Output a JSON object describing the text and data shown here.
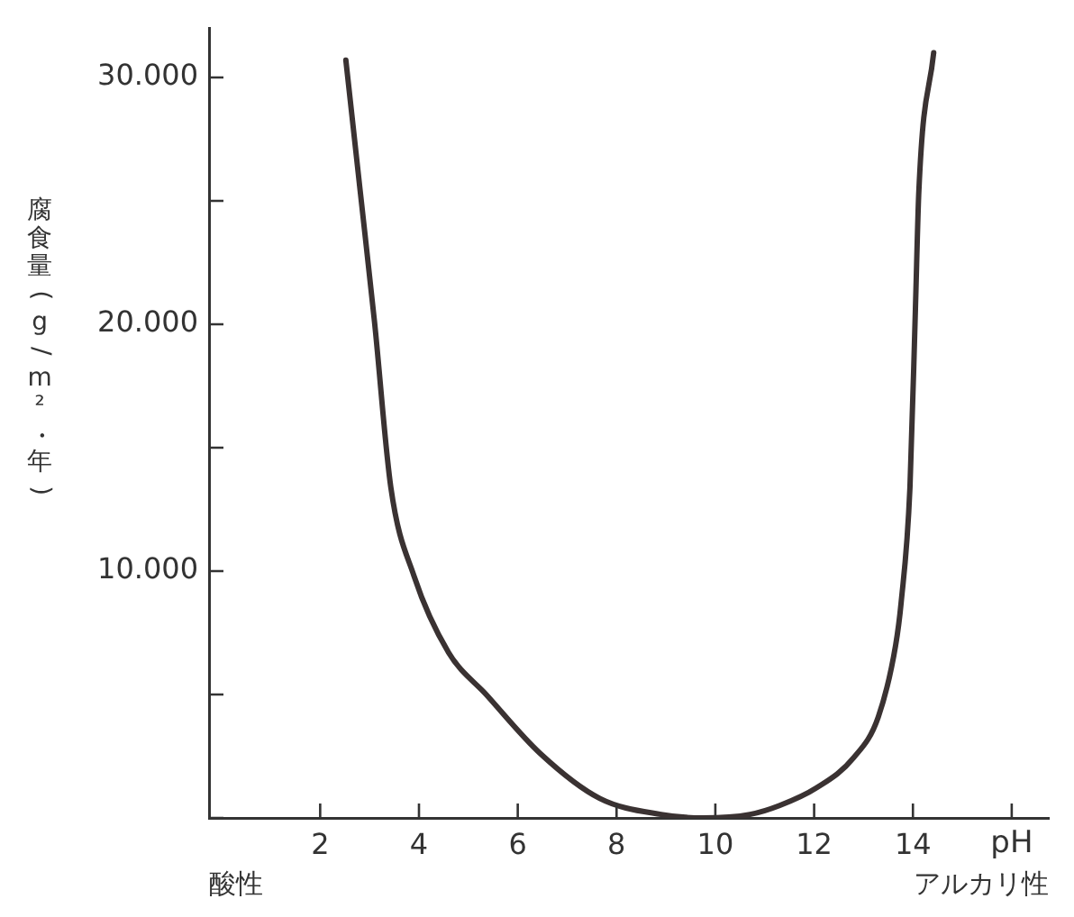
{
  "chart_data": {
    "type": "line",
    "xlabel": "pH",
    "ylabel": "腐食量(g/m²・年)",
    "annotations": [
      "酸性",
      "アルカリ性"
    ],
    "series": [
      {
        "color": "#3a3232",
        "x": [
          2.52,
          2.81,
          3.1,
          3.43,
          3.9,
          4.6,
          5.36,
          6.46,
          7.66,
          8.9,
          9.75,
          10.7,
          11.3,
          12.05,
          12.8,
          13.3,
          13.65,
          13.76,
          13.94,
          14.05,
          14.12,
          14.42
        ],
        "values": [
          30700,
          25400,
          20100,
          13400,
          9800,
          6700,
          5000,
          2600,
          790,
          140,
          0,
          140,
          500,
          1220,
          2440,
          4100,
          7000,
          8700,
          13400,
          20600,
          25400,
          31000
        ]
      }
    ],
    "xlim": [
      -0.25,
      16.75
    ],
    "xticks": [
      2,
      4,
      6,
      8,
      10,
      12,
      14,
      {
        "value": 16,
        "label": null
      }
    ],
    "ylim": [
      0,
      32000
    ],
    "yticks": [
      {
        "value": 0,
        "label": null
      },
      {
        "value": 5000,
        "label": null
      },
      {
        "value": 10000,
        "label": "10.000"
      },
      {
        "value": 15000,
        "label": null
      },
      {
        "value": 20000,
        "label": "20.000"
      },
      {
        "value": 25000,
        "label": null
      },
      {
        "value": 30000,
        "label": "30.000"
      }
    ],
    "grid": false,
    "legend": false,
    "marker": "none",
    "line_style": "solid"
  }
}
